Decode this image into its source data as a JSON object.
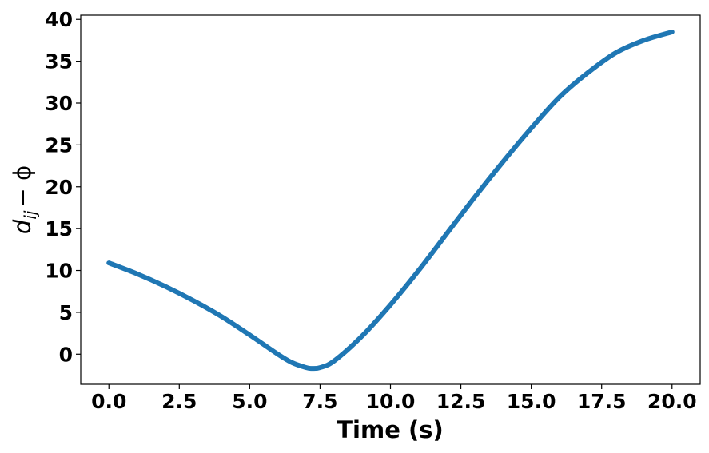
{
  "chart_data": {
    "type": "line",
    "xlabel": "Time (s)",
    "ylabel": {
      "d": "d",
      "sub": "ij",
      "rest": "− ϕ"
    },
    "xlim": [
      -1.0,
      21.0
    ],
    "ylim": [
      -3.6,
      40.5
    ],
    "xticks": [
      "0.0",
      "2.5",
      "5.0",
      "7.5",
      "10.0",
      "12.5",
      "15.0",
      "17.5",
      "20.0"
    ],
    "xtick_values": [
      0,
      2.5,
      5,
      7.5,
      10,
      12.5,
      15,
      17.5,
      20
    ],
    "yticks": [
      "0",
      "5",
      "10",
      "15",
      "20",
      "25",
      "30",
      "35",
      "40"
    ],
    "ytick_values": [
      0,
      5,
      10,
      15,
      20,
      25,
      30,
      35,
      40
    ],
    "grid": false,
    "line_color": "#1f77b4",
    "series": [
      {
        "x": [
          0,
          1,
          2,
          3,
          4,
          5,
          6,
          6.5,
          7,
          7.2,
          7.5,
          8,
          9,
          10,
          11,
          12,
          13,
          14,
          15,
          16,
          17,
          18,
          19,
          20
        ],
        "y": [
          10.9,
          9.6,
          8.1,
          6.4,
          4.5,
          2.3,
          0.0,
          -1.0,
          -1.6,
          -1.7,
          -1.6,
          -0.8,
          2.2,
          5.9,
          10.0,
          14.4,
          18.8,
          23.0,
          27.0,
          30.7,
          33.6,
          36.0,
          37.5,
          38.5
        ]
      }
    ]
  }
}
